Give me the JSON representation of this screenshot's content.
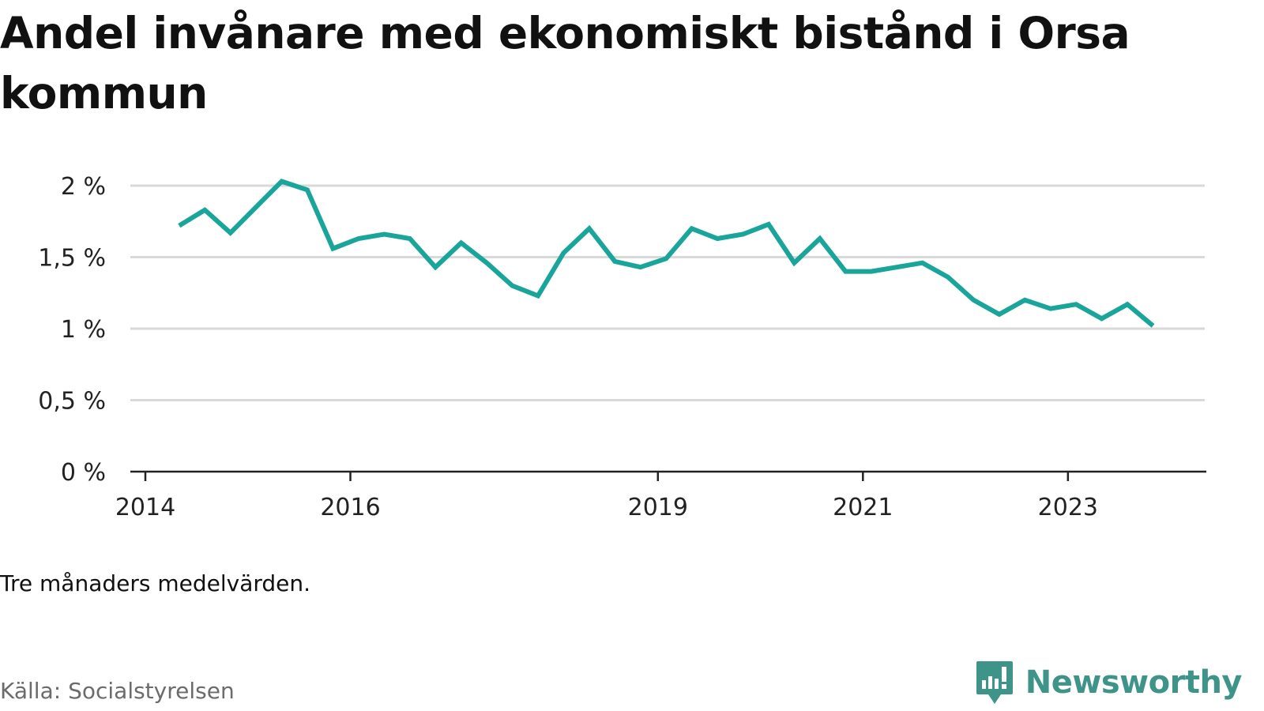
{
  "header": {
    "title": "Andel invånare med ekonomiskt bistånd i Orsa kommun"
  },
  "footer": {
    "note": "Tre månaders medelvärden.",
    "source": "Källa: Socialstyrelsen",
    "brand": "Newsworthy"
  },
  "colors": {
    "line": "#1aa59b",
    "grid": "#d9d9d9",
    "axis": "#222222",
    "brand": "#3f948a"
  },
  "chart_data": {
    "type": "line",
    "title": "Andel invånare med ekonomiskt bistånd i Orsa kommun",
    "xlabel": "",
    "ylabel": "",
    "xlim": [
      2014.0,
      2024.35
    ],
    "ylim": [
      0,
      2
    ],
    "x_ticks": [
      2014,
      2016,
      2019,
      2021,
      2023
    ],
    "x_tick_labels": [
      "2014",
      "2016",
      "2019",
      "2021",
      "2023"
    ],
    "y_ticks": [
      0,
      0.5,
      1,
      1.5,
      2
    ],
    "y_tick_labels": [
      "0 %",
      "0,5 %",
      "1 %",
      "1,5 %",
      "2 %"
    ],
    "grid": "horizontal",
    "series": [
      {
        "x": [
          2014.33,
          2014.58,
          2014.83,
          2015.08,
          2015.33,
          2015.58,
          2015.83,
          2016.08,
          2016.33,
          2016.58,
          2016.83,
          2017.08,
          2017.33,
          2017.58,
          2017.83,
          2018.08,
          2018.33,
          2018.58,
          2018.83,
          2019.08,
          2019.33,
          2019.58,
          2019.83,
          2020.08,
          2020.33,
          2020.58,
          2020.83,
          2021.08,
          2021.33,
          2021.58,
          2021.83,
          2022.08,
          2022.33,
          2022.58,
          2022.83,
          2023.08,
          2023.33,
          2023.58,
          2023.83
        ],
        "values": [
          1.72,
          1.83,
          1.67,
          1.85,
          2.03,
          1.97,
          1.56,
          1.63,
          1.66,
          1.63,
          1.43,
          1.6,
          1.46,
          1.3,
          1.23,
          1.53,
          1.7,
          1.47,
          1.43,
          1.49,
          1.7,
          1.63,
          1.66,
          1.73,
          1.46,
          1.63,
          1.4,
          1.4,
          1.43,
          1.46,
          1.36,
          1.2,
          1.1,
          1.2,
          1.14,
          1.17,
          1.07,
          1.17,
          1.02
        ]
      }
    ]
  }
}
